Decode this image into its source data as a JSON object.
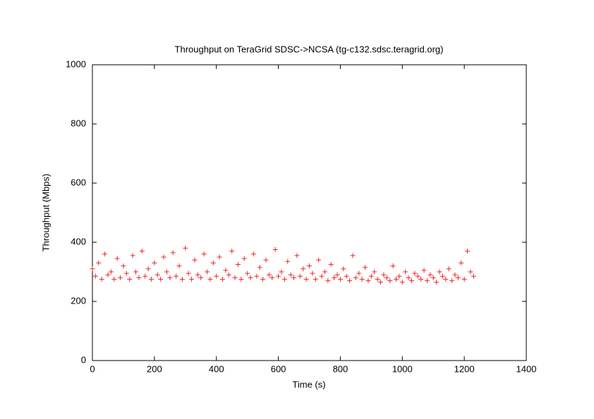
{
  "chart_data": {
    "type": "scatter",
    "title": "Throughput on TeraGrid SDSC->NCSA (tg-c132.sdsc.teragrid.org)",
    "xlabel": "Time (s)",
    "ylabel": "Throughput (Mbps)",
    "xlim": [
      0,
      1400
    ],
    "ylim": [
      0,
      1000
    ],
    "xticks": [
      0,
      200,
      400,
      600,
      800,
      1000,
      1200,
      1400
    ],
    "yticks": [
      0,
      200,
      400,
      600,
      800,
      1000
    ],
    "grid": false,
    "series": [
      {
        "name": null,
        "color": "#e8282a",
        "x": [
          0,
          10,
          20,
          30,
          40,
          50,
          60,
          70,
          80,
          90,
          100,
          110,
          120,
          130,
          140,
          150,
          160,
          170,
          180,
          190,
          200,
          210,
          220,
          230,
          240,
          250,
          260,
          270,
          280,
          290,
          300,
          310,
          320,
          330,
          340,
          350,
          360,
          370,
          380,
          390,
          400,
          410,
          420,
          430,
          440,
          450,
          460,
          470,
          480,
          490,
          500,
          510,
          520,
          530,
          540,
          550,
          560,
          570,
          580,
          590,
          600,
          610,
          620,
          630,
          640,
          650,
          660,
          670,
          680,
          690,
          700,
          710,
          720,
          730,
          740,
          750,
          760,
          770,
          780,
          790,
          800,
          810,
          820,
          830,
          840,
          850,
          860,
          870,
          880,
          890,
          900,
          910,
          920,
          930,
          940,
          950,
          960,
          970,
          980,
          990,
          1000,
          1010,
          1020,
          1030,
          1040,
          1050,
          1060,
          1070,
          1080,
          1090,
          1100,
          1110,
          1120,
          1130,
          1140,
          1150,
          1160,
          1170,
          1180,
          1190,
          1200,
          1210,
          1220,
          1230
        ],
        "values": [
          310,
          285,
          330,
          275,
          360,
          290,
          300,
          275,
          345,
          280,
          320,
          295,
          275,
          355,
          300,
          280,
          370,
          285,
          310,
          275,
          330,
          290,
          275,
          350,
          300,
          280,
          365,
          285,
          320,
          275,
          380,
          295,
          275,
          340,
          290,
          280,
          360,
          300,
          275,
          330,
          285,
          350,
          275,
          305,
          290,
          370,
          280,
          325,
          275,
          345,
          295,
          280,
          360,
          285,
          315,
          275,
          340,
          290,
          280,
          375,
          285,
          300,
          275,
          335,
          290,
          280,
          355,
          285,
          310,
          275,
          320,
          295,
          275,
          340,
          285,
          300,
          270,
          325,
          280,
          290,
          275,
          310,
          285,
          270,
          355,
          280,
          295,
          275,
          315,
          270,
          285,
          300,
          275,
          265,
          290,
          280,
          270,
          320,
          275,
          285,
          265,
          300,
          280,
          270,
          295,
          285,
          275,
          305,
          270,
          290,
          280,
          265,
          300,
          285,
          275,
          310,
          270,
          290,
          280,
          330,
          275,
          370,
          300,
          285
        ]
      }
    ]
  }
}
